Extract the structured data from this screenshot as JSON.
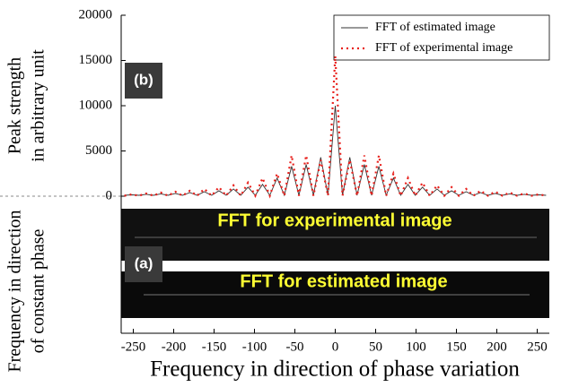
{
  "chart_data": {
    "type": "line",
    "y_label": [
      "Peak strength",
      "in arbitrary unit"
    ],
    "image_y_label": [
      "Frequency in direction",
      "of constant phase"
    ],
    "x_label": "Frequency in direction of phase variation",
    "panel_labels": [
      "(b)",
      "(a)"
    ],
    "image_captions": [
      "FFT for experimental image",
      "FFT for estimated image"
    ],
    "legend": "upper right",
    "x": [
      -261,
      -252,
      -243,
      -234,
      -225,
      -216,
      -207,
      -198,
      -189,
      -180,
      -171,
      -162,
      -153,
      -144,
      -135,
      -126,
      -117,
      -108,
      -99,
      -90,
      -81,
      -72,
      -63,
      -54,
      -45,
      -36,
      -27,
      -18,
      -9,
      0,
      9,
      18,
      27,
      36,
      45,
      54,
      63,
      72,
      81,
      90,
      99,
      108,
      117,
      126,
      135,
      144,
      153,
      162,
      171,
      180,
      189,
      198,
      207,
      216,
      225,
      234,
      243,
      252,
      261
    ],
    "series": [
      {
        "name": "FFT of estimated image",
        "color": "#333333",
        "style": "solid",
        "values": [
          100,
          150,
          100,
          200,
          100,
          250,
          100,
          300,
          100,
          400,
          100,
          500,
          100,
          600,
          100,
          800,
          100,
          1000,
          100,
          1300,
          100,
          2000,
          100,
          3300,
          100,
          3500,
          100,
          4300,
          100,
          10000,
          100,
          4300,
          100,
          3500,
          100,
          3300,
          100,
          2000,
          100,
          1300,
          100,
          1000,
          100,
          800,
          100,
          600,
          100,
          500,
          100,
          400,
          100,
          300,
          100,
          250,
          100,
          200,
          100,
          150,
          100
        ]
      },
      {
        "name": "FFT of experimental image",
        "color": "#e8201c",
        "style": "dotted",
        "values": [
          50,
          200,
          50,
          300,
          50,
          400,
          50,
          500,
          50,
          600,
          50,
          800,
          50,
          1000,
          50,
          1200,
          50,
          1500,
          50,
          2000,
          50,
          2500,
          50,
          4500,
          50,
          4500,
          50,
          4000,
          50,
          15500,
          50,
          4000,
          50,
          4500,
          50,
          4500,
          50,
          2500,
          50,
          2000,
          50,
          1500,
          50,
          1200,
          50,
          1000,
          50,
          800,
          50,
          600,
          50,
          500,
          50,
          400,
          50,
          300,
          50,
          200,
          50
        ]
      }
    ],
    "xlim": [
      -265,
      265
    ],
    "xticks": [
      -250,
      -200,
      -150,
      -100,
      -50,
      0,
      50,
      100,
      150,
      200,
      250
    ],
    "ylim": [
      0,
      20000
    ],
    "yticks": [
      0,
      5000,
      10000,
      15000,
      20000
    ]
  }
}
